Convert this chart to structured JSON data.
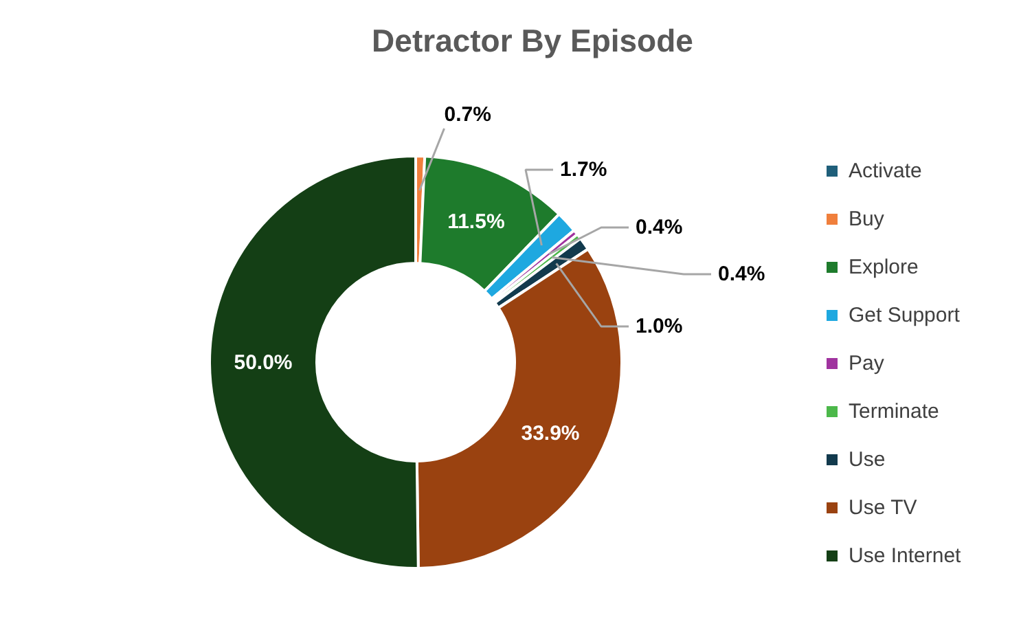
{
  "chart_data": {
    "type": "donut",
    "title": "Detractor By Episode",
    "categories": [
      "Activate",
      "Buy",
      "Explore",
      "Get Support",
      "Pay",
      "Terminate",
      "Use",
      "Use TV",
      "Use Internet"
    ],
    "values": [
      0.0,
      0.7,
      11.5,
      1.7,
      0.4,
      0.4,
      1.0,
      33.9,
      50.0
    ],
    "colors": [
      "#1f5f7a",
      "#f07f3c",
      "#1e7b2c",
      "#1ea8e0",
      "#a0339f",
      "#4cb84a",
      "#123a4d",
      "#9a4210",
      "#143f15"
    ],
    "value_labels": [
      null,
      "0.7%",
      "11.5%",
      "1.7%",
      "0.4%",
      "0.4%",
      "1.0%",
      "33.9%",
      "50.0%"
    ],
    "legend": "right"
  }
}
